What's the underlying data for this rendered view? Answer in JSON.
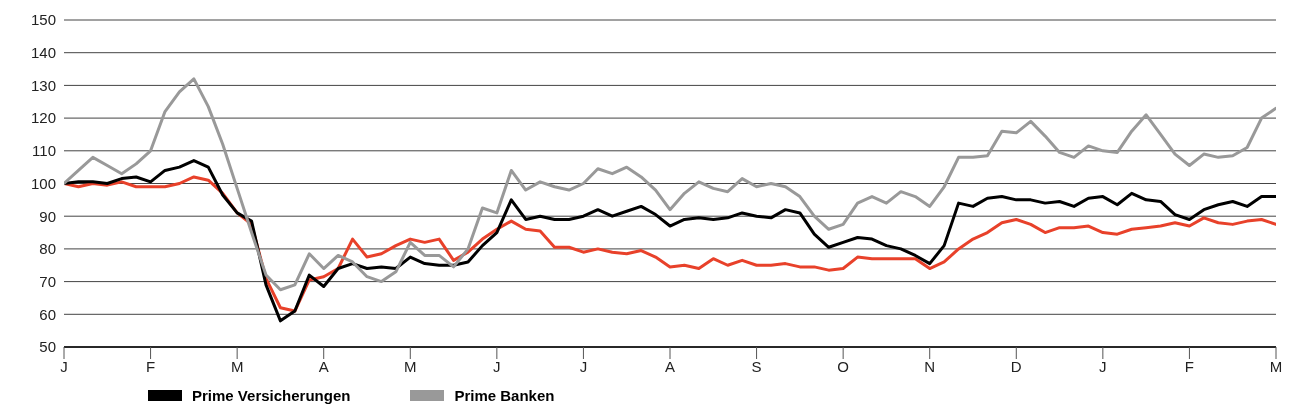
{
  "chart_data": {
    "type": "line",
    "categories": [
      "J",
      null,
      null,
      null,
      null,
      null,
      "F",
      null,
      null,
      null,
      null,
      null,
      "M",
      null,
      null,
      null,
      null,
      null,
      "A",
      null,
      null,
      null,
      null,
      null,
      "M",
      null,
      null,
      null,
      null,
      null,
      "J",
      null,
      null,
      null,
      null,
      null,
      "J",
      null,
      null,
      null,
      null,
      null,
      "A",
      null,
      null,
      null,
      null,
      null,
      "S",
      null,
      null,
      null,
      null,
      null,
      "O",
      null,
      null,
      null,
      null,
      null,
      "N",
      null,
      null,
      null,
      null,
      null,
      "D",
      null,
      null,
      null,
      null,
      null,
      "J",
      null,
      null,
      null,
      null,
      null,
      "F",
      null,
      null,
      null,
      null,
      null,
      "M"
    ],
    "ylim": [
      50,
      150
    ],
    "yticks": [
      50,
      60,
      70,
      80,
      90,
      100,
      110,
      120,
      130,
      140,
      150
    ],
    "grid": "y",
    "legend": "bottom",
    "marker": "none",
    "line_style": "solid",
    "series": [
      {
        "color": "#e8412a",
        "values": [
          100,
          99,
          100,
          99.5,
          100.5,
          99,
          99,
          99,
          100,
          102,
          101,
          97,
          91,
          87.5,
          71,
          62,
          61,
          70.5,
          71.5,
          74,
          83,
          77.5,
          78.5,
          81,
          83,
          82,
          83,
          76.5,
          79,
          83,
          86,
          88.5,
          86,
          85.5,
          80.5,
          80.5,
          79,
          80,
          79,
          78.5,
          79.5,
          77.5,
          74.5,
          75,
          74,
          77,
          75,
          76.5,
          75,
          75,
          75.5,
          74.5,
          74.5,
          73.5,
          74,
          77.5,
          77,
          77,
          77,
          77,
          74,
          76,
          80,
          83,
          85,
          88,
          89,
          87.5,
          85,
          86.5,
          86.5,
          87,
          85,
          84.5,
          86,
          86.5,
          87,
          88,
          87,
          89.5,
          88,
          87.5,
          88.5,
          89,
          87.5
        ]
      },
      {
        "name": "Prime Versicherungen",
        "color": "#000000",
        "values": [
          100,
          100.5,
          100.5,
          100,
          101.5,
          102,
          100.5,
          104,
          105,
          107,
          105,
          96.5,
          91,
          88.5,
          69,
          58,
          61,
          72,
          68.5,
          74,
          75.5,
          74,
          74.5,
          74,
          77.5,
          75.5,
          75,
          75,
          76,
          81,
          85,
          95,
          89,
          90,
          89,
          89,
          90,
          92,
          90,
          91.5,
          93,
          90.5,
          87,
          89,
          89.5,
          89,
          89.5,
          91,
          90,
          89.5,
          92,
          91,
          84.5,
          80.5,
          82,
          83.5,
          83,
          81,
          80,
          78,
          75.5,
          81,
          94,
          93,
          95.5,
          96,
          95,
          95,
          94,
          94.5,
          93,
          95.5,
          96,
          93.5,
          97,
          95,
          94.5,
          90.5,
          89,
          92,
          93.5,
          94.5,
          93,
          96,
          96
        ]
      },
      {
        "name": "Prime Banken",
        "color": "#999999",
        "values": [
          100,
          104,
          108,
          105.5,
          103,
          106,
          110,
          122,
          128,
          132,
          123.5,
          112,
          98.5,
          85,
          72,
          67.5,
          69,
          78.5,
          74,
          78,
          76,
          71.5,
          70,
          73,
          82,
          78,
          78,
          74.5,
          80,
          92.5,
          91,
          104,
          98,
          100.5,
          99,
          98,
          100,
          104.5,
          103,
          105,
          102,
          98,
          92,
          97,
          100.5,
          98.5,
          97.5,
          101.5,
          99,
          100,
          99,
          96,
          90,
          86,
          87.5,
          94,
          96,
          94,
          97.5,
          96,
          93,
          99,
          108,
          108,
          108.5,
          116,
          115.5,
          119,
          114.5,
          109.5,
          108,
          111.5,
          110,
          109.5,
          116,
          121,
          115,
          109,
          105.5,
          109,
          108,
          108.5,
          111,
          120,
          123
        ]
      }
    ]
  }
}
